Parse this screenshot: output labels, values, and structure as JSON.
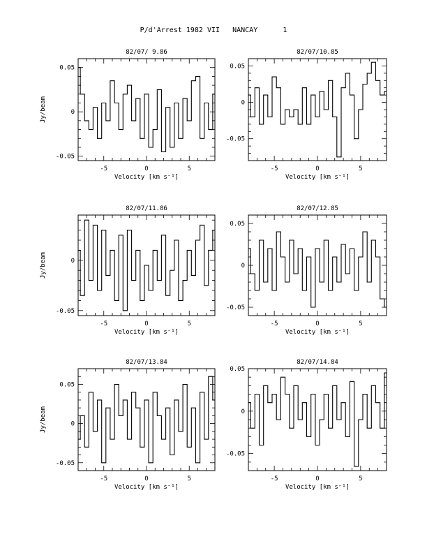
{
  "page": {
    "title": "P/d'Arrest 1982 VII   NANCAY      1"
  },
  "chart_data": [
    {
      "type": "line",
      "title": "82/07/ 9.86",
      "xlabel": "Velocity [km s⁻¹]",
      "ylabel": "Jy/beam",
      "xlim": [
        -8,
        8
      ],
      "ylim": [
        -0.055,
        0.06
      ],
      "xticks": [
        "-5",
        "0",
        "5"
      ],
      "yticks": [
        "0.05",
        "0",
        "-0.05"
      ],
      "x": [
        -8,
        -7.5,
        -7,
        -6.5,
        -6,
        -5.5,
        -5,
        -4.5,
        -4,
        -3.5,
        -3,
        -2.5,
        -2,
        -1.5,
        -1,
        -0.5,
        0,
        0.5,
        1,
        1.5,
        2,
        2.5,
        3,
        3.5,
        4,
        4.5,
        5,
        5.5,
        6,
        6.5,
        7,
        7.5,
        8
      ],
      "y": [
        0.05,
        0.02,
        -0.01,
        -0.02,
        0.005,
        -0.03,
        0.01,
        -0.01,
        0.035,
        0.01,
        -0.02,
        0.02,
        0.03,
        -0.01,
        0.015,
        -0.03,
        0.02,
        -0.04,
        -0.02,
        0.025,
        -0.045,
        0.005,
        -0.04,
        0.01,
        -0.03,
        0.015,
        -0.01,
        0.035,
        0.04,
        -0.03,
        0.01,
        -0.02,
        0.02
      ]
    },
    {
      "type": "line",
      "title": "82/07/10.85",
      "xlabel": "Velocity [km s⁻¹]",
      "ylabel": "",
      "xlim": [
        -8,
        8
      ],
      "ylim": [
        -0.08,
        0.06
      ],
      "xticks": [
        "-5",
        "0",
        "5"
      ],
      "yticks": [
        "0.05",
        "0",
        "-0.05"
      ],
      "x": [
        -8,
        -7.5,
        -7,
        -6.5,
        -6,
        -5.5,
        -5,
        -4.5,
        -4,
        -3.5,
        -3,
        -2.5,
        -2,
        -1.5,
        -1,
        -0.5,
        0,
        0.5,
        1,
        1.5,
        2,
        2.5,
        3,
        3.5,
        4,
        4.5,
        5,
        5.5,
        6,
        6.5,
        7,
        7.5,
        8
      ],
      "y": [
        0.01,
        -0.02,
        0.02,
        -0.03,
        0.01,
        -0.02,
        0.035,
        0.02,
        -0.03,
        -0.01,
        -0.02,
        -0.01,
        -0.03,
        0.02,
        -0.03,
        0.01,
        -0.02,
        0.015,
        -0.01,
        0.03,
        -0.02,
        -0.075,
        0.02,
        0.04,
        0.01,
        -0.05,
        -0.01,
        0.025,
        0.04,
        0.055,
        0.03,
        0.01,
        0.015
      ]
    },
    {
      "type": "line",
      "title": "82/07/11.86",
      "xlabel": "Velocity [km s⁻¹]",
      "ylabel": "Jy/beam",
      "xlim": [
        -8,
        8
      ],
      "ylim": [
        -0.055,
        0.045
      ],
      "xticks": [
        "-5",
        "0",
        "5"
      ],
      "yticks": [
        "0",
        "-0.05"
      ],
      "x": [
        -8,
        -7.5,
        -7,
        -6.5,
        -6,
        -5.5,
        -5,
        -4.5,
        -4,
        -3.5,
        -3,
        -2.5,
        -2,
        -1.5,
        -1,
        -0.5,
        0,
        0.5,
        1,
        1.5,
        2,
        2.5,
        3,
        3.5,
        4,
        4.5,
        5,
        5.5,
        6,
        6.5,
        7,
        7.5,
        8
      ],
      "y": [
        0.01,
        -0.035,
        0.04,
        -0.02,
        0.035,
        -0.03,
        0.03,
        -0.015,
        0.01,
        -0.04,
        0.025,
        -0.05,
        0.03,
        -0.02,
        0.01,
        -0.04,
        -0.005,
        -0.03,
        0.01,
        -0.02,
        0.025,
        -0.035,
        -0.01,
        0.02,
        -0.04,
        -0.02,
        0.01,
        -0.015,
        0.02,
        0.035,
        -0.025,
        0.01,
        0.03
      ]
    },
    {
      "type": "line",
      "title": "82/07/12.85",
      "xlabel": "Velocity [km s⁻¹]",
      "ylabel": "",
      "xlim": [
        -8,
        8
      ],
      "ylim": [
        -0.06,
        0.06
      ],
      "xticks": [
        "-5",
        "0",
        "5"
      ],
      "yticks": [
        "0.05",
        "0",
        "-0.05"
      ],
      "x": [
        -8,
        -7.5,
        -7,
        -6.5,
        -6,
        -5.5,
        -5,
        -4.5,
        -4,
        -3.5,
        -3,
        -2.5,
        -2,
        -1.5,
        -1,
        -0.5,
        0,
        0.5,
        1,
        1.5,
        2,
        2.5,
        3,
        3.5,
        4,
        4.5,
        5,
        5.5,
        6,
        6.5,
        7,
        7.5,
        8
      ],
      "y": [
        0.02,
        -0.01,
        -0.03,
        0.03,
        -0.02,
        0.02,
        -0.03,
        0.04,
        0.01,
        -0.02,
        0.03,
        -0.01,
        0.02,
        -0.03,
        0.01,
        -0.05,
        0.02,
        -0.02,
        0.03,
        -0.03,
        0.01,
        -0.02,
        0.025,
        -0.01,
        0.02,
        -0.03,
        0.01,
        0.04,
        -0.02,
        0.03,
        0.01,
        -0.04,
        -0.05
      ]
    },
    {
      "type": "line",
      "title": "82/07/13.84",
      "xlabel": "Velocity [km s⁻¹]",
      "ylabel": "Jy/beam",
      "xlim": [
        -8,
        8
      ],
      "ylim": [
        -0.06,
        0.07
      ],
      "xticks": [
        "-5",
        "0",
        "5"
      ],
      "yticks": [
        "0.05",
        "0",
        "-0.05"
      ],
      "x": [
        -8,
        -7.5,
        -7,
        -6.5,
        -6,
        -5.5,
        -5,
        -4.5,
        -4,
        -3.5,
        -3,
        -2.5,
        -2,
        -1.5,
        -1,
        -0.5,
        0,
        0.5,
        1,
        1.5,
        2,
        2.5,
        3,
        3.5,
        4,
        4.5,
        5,
        5.5,
        6,
        6.5,
        7,
        7.5,
        8
      ],
      "y": [
        -0.02,
        0.01,
        -0.03,
        0.04,
        -0.01,
        0.03,
        -0.05,
        0.02,
        -0.02,
        0.05,
        0.01,
        0.03,
        -0.02,
        0.04,
        0.02,
        -0.03,
        0.03,
        -0.05,
        0.04,
        0.01,
        -0.02,
        0.02,
        -0.04,
        0.03,
        -0.01,
        0.05,
        -0.03,
        0.02,
        -0.05,
        0.04,
        -0.02,
        0.06,
        0.03
      ]
    },
    {
      "type": "line",
      "title": "82/07/14.84",
      "xlabel": "Velocity [km s⁻¹]",
      "ylabel": "",
      "xlim": [
        -8,
        8
      ],
      "ylim": [
        -0.07,
        0.05
      ],
      "xticks": [
        "-5",
        "0",
        "5"
      ],
      "yticks": [
        "0.05",
        "0",
        "-0.05"
      ],
      "x": [
        -8,
        -7.5,
        -7,
        -6.5,
        -6,
        -5.5,
        -5,
        -4.5,
        -4,
        -3.5,
        -3,
        -2.5,
        -2,
        -1.5,
        -1,
        -0.5,
        0,
        0.5,
        1,
        1.5,
        2,
        2.5,
        3,
        3.5,
        4,
        4.5,
        5,
        5.5,
        6,
        6.5,
        7,
        7.5,
        8
      ],
      "y": [
        0.01,
        -0.02,
        0.02,
        -0.04,
        0.03,
        0.01,
        0.02,
        -0.01,
        0.04,
        0.02,
        -0.02,
        0.03,
        -0.01,
        0.01,
        -0.03,
        0.02,
        -0.04,
        -0.01,
        0.02,
        -0.02,
        0.03,
        -0.01,
        0.01,
        -0.03,
        0.035,
        -0.065,
        -0.01,
        0.02,
        -0.02,
        0.03,
        0.01,
        -0.02,
        0.045
      ]
    }
  ]
}
